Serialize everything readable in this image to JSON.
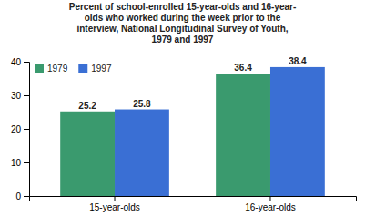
{
  "chart_data": {
    "type": "bar",
    "title": "Percent of school-enrolled 15-year-olds and 16-year-\nolds who worked during the week prior to the\ninterview, National Longitudinal Survey of Youth,\n1979 and 1997",
    "categories": [
      "15-year-olds",
      "16-year-olds"
    ],
    "series": [
      {
        "name": "1979",
        "color": "#3a9a6e",
        "values": [
          25.2,
          36.4
        ]
      },
      {
        "name": "1997",
        "color": "#3a6fd4",
        "values": [
          25.8,
          38.4
        ]
      }
    ],
    "ylim": [
      0,
      40
    ],
    "yticks": [
      0,
      10,
      20,
      30,
      40
    ],
    "data_labels": true,
    "legend": "upper left",
    "grid": false
  }
}
